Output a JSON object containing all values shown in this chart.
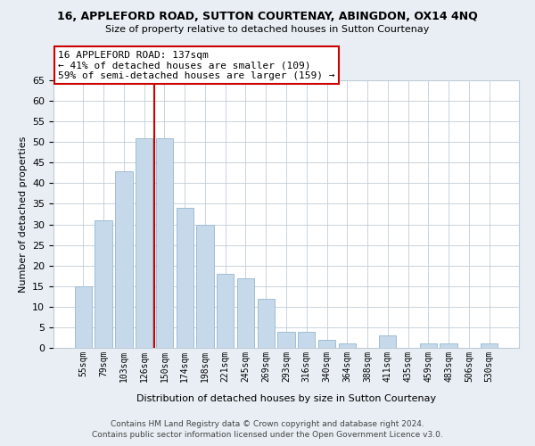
{
  "title": "16, APPLEFORD ROAD, SUTTON COURTENAY, ABINGDON, OX14 4NQ",
  "subtitle": "Size of property relative to detached houses in Sutton Courtenay",
  "xlabel": "Distribution of detached houses by size in Sutton Courtenay",
  "ylabel": "Number of detached properties",
  "bar_labels": [
    "55sqm",
    "79sqm",
    "103sqm",
    "126sqm",
    "150sqm",
    "174sqm",
    "198sqm",
    "221sqm",
    "245sqm",
    "269sqm",
    "293sqm",
    "316sqm",
    "340sqm",
    "364sqm",
    "388sqm",
    "411sqm",
    "435sqm",
    "459sqm",
    "483sqm",
    "506sqm",
    "530sqm"
  ],
  "bar_values": [
    15,
    31,
    43,
    51,
    51,
    34,
    30,
    18,
    17,
    12,
    4,
    4,
    2,
    1,
    0,
    3,
    0,
    1,
    1,
    0,
    1
  ],
  "bar_color": "#c6d9ea",
  "bar_edgecolor": "#9fbdd4",
  "vline_x": 3.5,
  "vline_color": "#cc0000",
  "ylim": [
    0,
    65
  ],
  "yticks": [
    0,
    5,
    10,
    15,
    20,
    25,
    30,
    35,
    40,
    45,
    50,
    55,
    60,
    65
  ],
  "annotation_title": "16 APPLEFORD ROAD: 137sqm",
  "annotation_line1": "← 41% of detached houses are smaller (109)",
  "annotation_line2": "59% of semi-detached houses are larger (159) →",
  "footer_line1": "Contains HM Land Registry data © Crown copyright and database right 2024.",
  "footer_line2": "Contains public sector information licensed under the Open Government Licence v3.0.",
  "bg_color": "#e8eef4",
  "plot_bg_color": "#ffffff",
  "grid_color": "#c0ccd8"
}
